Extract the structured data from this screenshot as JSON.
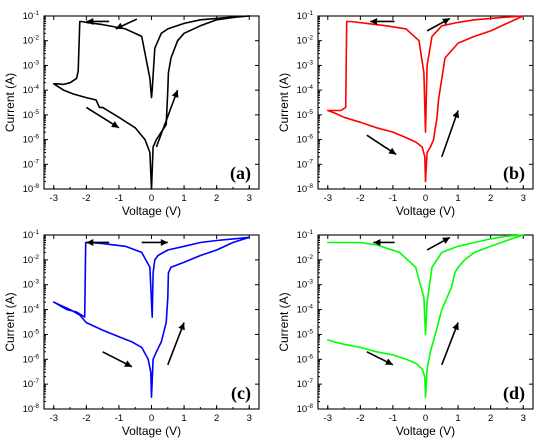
{
  "chart_data": [
    {
      "type": "line",
      "panel_label": "(a)",
      "color": "#000000",
      "xlabel": "Voltage (V)",
      "ylabel": "Current (A)",
      "xlim": [
        -3.3,
        3.3
      ],
      "ylim": [
        1e-08,
        0.1
      ],
      "yscale": "log",
      "x_ticks": [
        "-3",
        "-2",
        "-1",
        "0",
        "1",
        "2",
        "3"
      ],
      "y_ticks": [
        "10-8",
        "10-7",
        "10-6",
        "10-5",
        "10-4",
        "10-3",
        "10-2",
        "10-1"
      ],
      "series": [
        {
          "x": [
            -3.0,
            -2.7,
            -2.4,
            -2.0,
            -1.7,
            -1.6,
            -1.5,
            -1.0,
            -0.5,
            -0.2,
            -0.05,
            0.0,
            0.05,
            0.15,
            0.3,
            0.45,
            0.5,
            0.52,
            0.6,
            0.8,
            1.0,
            1.5,
            2.0,
            2.6,
            3.0,
            2.5,
            2.0,
            1.5,
            1.0,
            0.5,
            0.3,
            0.1,
            0.02,
            0.0,
            -0.05,
            -0.3,
            -0.8,
            -1.5,
            -2.0,
            -2.15,
            -2.2,
            -2.25,
            -2.3,
            -2.5,
            -2.7,
            -2.9,
            -3.0
          ],
          "y": [
            0.00018,
            0.0001,
            7e-05,
            5e-05,
            4e-05,
            2e-05,
            2e-05,
            8e-06,
            3e-06,
            1e-06,
            3e-07,
            1e-08,
            5e-07,
            1e-06,
            2e-06,
            4e-06,
            0.0001,
            0.0005,
            0.002,
            0.01,
            0.02,
            0.04,
            0.07,
            0.09,
            0.1,
            0.09,
            0.08,
            0.07,
            0.05,
            0.03,
            0.02,
            0.005,
            0.0001,
            5e-05,
            0.0003,
            0.015,
            0.03,
            0.045,
            0.055,
            0.06,
            0.06,
            0.0006,
            0.0003,
            0.0002,
            0.00017,
            0.00018,
            0.00018
          ]
        }
      ]
    },
    {
      "type": "line",
      "panel_label": "(b)",
      "color": "#ff0000",
      "xlabel": "Voltage (V)",
      "ylabel": "Current (A)",
      "xlim": [
        -3.3,
        3.3
      ],
      "ylim": [
        1e-08,
        0.1
      ],
      "yscale": "log",
      "x_ticks": [
        "-3",
        "-2",
        "-1",
        "0",
        "1",
        "2",
        "3"
      ],
      "y_ticks": [
        "10-8",
        "10-7",
        "10-6",
        "10-5",
        "10-4",
        "10-3",
        "10-2",
        "10-1"
      ],
      "series": [
        {
          "x": [
            -3.0,
            -2.8,
            -2.5,
            -2.0,
            -1.5,
            -1.0,
            -0.6,
            -0.3,
            -0.1,
            -0.02,
            0.0,
            0.05,
            0.15,
            0.25,
            0.3,
            0.35,
            0.4,
            0.6,
            1.0,
            1.5,
            2.0,
            2.5,
            3.0,
            2.5,
            2.0,
            1.5,
            1.0,
            0.5,
            0.2,
            0.05,
            0.0,
            -0.05,
            -0.2,
            -0.6,
            -1.2,
            -1.8,
            -2.3,
            -2.4,
            -2.42,
            -2.45,
            -2.6,
            -2.8,
            -3.0
          ],
          "y": [
            1.5e-05,
            1.2e-05,
            8e-06,
            5e-06,
            3e-06,
            2e-06,
            1.2e-06,
            8e-07,
            5e-07,
            2e-07,
            2e-08,
            3e-07,
            5e-07,
            1e-06,
            3e-06,
            7e-06,
            4e-05,
            0.002,
            0.008,
            0.015,
            0.025,
            0.05,
            0.1,
            0.09,
            0.08,
            0.07,
            0.055,
            0.04,
            0.015,
            0.001,
            2e-06,
            0.0005,
            0.01,
            0.03,
            0.04,
            0.05,
            0.06,
            0.06,
            0.06,
            2e-05,
            1.5e-05,
            1.5e-05,
            1.5e-05
          ]
        }
      ]
    },
    {
      "type": "line",
      "panel_label": "(c)",
      "color": "#0000ff",
      "xlabel": "Voltage (V)",
      "ylabel": "Current (A)",
      "xlim": [
        -3.3,
        3.3
      ],
      "ylim": [
        1e-08,
        0.1
      ],
      "yscale": "log",
      "x_ticks": [
        "-3",
        "-2",
        "-1",
        "0",
        "1",
        "2",
        "3"
      ],
      "y_ticks": [
        "10-8",
        "10-7",
        "10-6",
        "10-5",
        "10-4",
        "10-3",
        "10-2",
        "10-1"
      ],
      "series": [
        {
          "x": [
            -3.0,
            -2.8,
            -2.5,
            -2.2,
            -2.0,
            -1.5,
            -1.0,
            -0.6,
            -0.3,
            -0.1,
            -0.02,
            0.0,
            0.05,
            0.15,
            0.3,
            0.45,
            0.5,
            0.52,
            0.6,
            1.0,
            1.5,
            2.0,
            2.5,
            3.0,
            2.5,
            2.0,
            1.5,
            1.0,
            0.5,
            0.2,
            0.1,
            0.05,
            0.02,
            -0.05,
            -0.3,
            -0.8,
            -1.5,
            -1.9,
            -2.0,
            -2.02,
            -2.05,
            -2.3,
            -2.6,
            -3.0
          ],
          "y": [
            0.0002,
            0.00015,
            0.0001,
            6e-05,
            3e-05,
            1.5e-05,
            8e-06,
            5e-06,
            3e-06,
            1e-06,
            3e-07,
            3e-08,
            1e-06,
            2e-06,
            5e-06,
            3e-05,
            0.0003,
            0.003,
            0.005,
            0.008,
            0.015,
            0.025,
            0.05,
            0.08,
            0.07,
            0.06,
            0.05,
            0.035,
            0.025,
            0.015,
            0.01,
            0.003,
            5e-05,
            0.005,
            0.02,
            0.035,
            0.045,
            0.05,
            0.05,
            0.05,
            5e-05,
            8e-05,
            0.0001,
            0.0002
          ]
        }
      ]
    },
    {
      "type": "line",
      "panel_label": "(d)",
      "color": "#00ff00",
      "xlabel": "Voltage (V)",
      "ylabel": "Current (A)",
      "xlim": [
        -3.3,
        3.3
      ],
      "ylim": [
        1e-08,
        0.1
      ],
      "yscale": "log",
      "x_ticks": [
        "-3",
        "-2",
        "-1",
        "0",
        "1",
        "2",
        "3"
      ],
      "y_ticks": [
        "10-8",
        "10-7",
        "10-6",
        "10-5",
        "10-4",
        "10-3",
        "10-2",
        "10-1"
      ],
      "series": [
        {
          "x": [
            -3.0,
            -2.8,
            -2.5,
            -2.0,
            -1.5,
            -1.0,
            -0.6,
            -0.3,
            -0.1,
            -0.02,
            0.0,
            0.05,
            0.15,
            0.3,
            0.5,
            0.8,
            0.9,
            1.0,
            1.2,
            1.5,
            2.0,
            2.5,
            3.0,
            2.5,
            2.0,
            1.5,
            1.0,
            0.5,
            0.2,
            0.05,
            0.0,
            -0.05,
            -0.3,
            -0.8,
            -1.5,
            -2.0,
            -2.5,
            -3.0
          ],
          "y": [
            6e-06,
            5e-06,
            4e-06,
            3e-06,
            2e-06,
            1.5e-06,
            1e-06,
            7e-07,
            4e-07,
            2e-07,
            3e-08,
            4e-07,
            2e-06,
            1e-05,
            0.0001,
            0.0008,
            0.003,
            0.005,
            0.01,
            0.02,
            0.035,
            0.06,
            0.1,
            0.09,
            0.07,
            0.05,
            0.035,
            0.02,
            0.005,
            0.0002,
            1e-05,
            0.0003,
            0.005,
            0.02,
            0.04,
            0.05,
            0.05,
            0.05
          ]
        }
      ]
    }
  ]
}
